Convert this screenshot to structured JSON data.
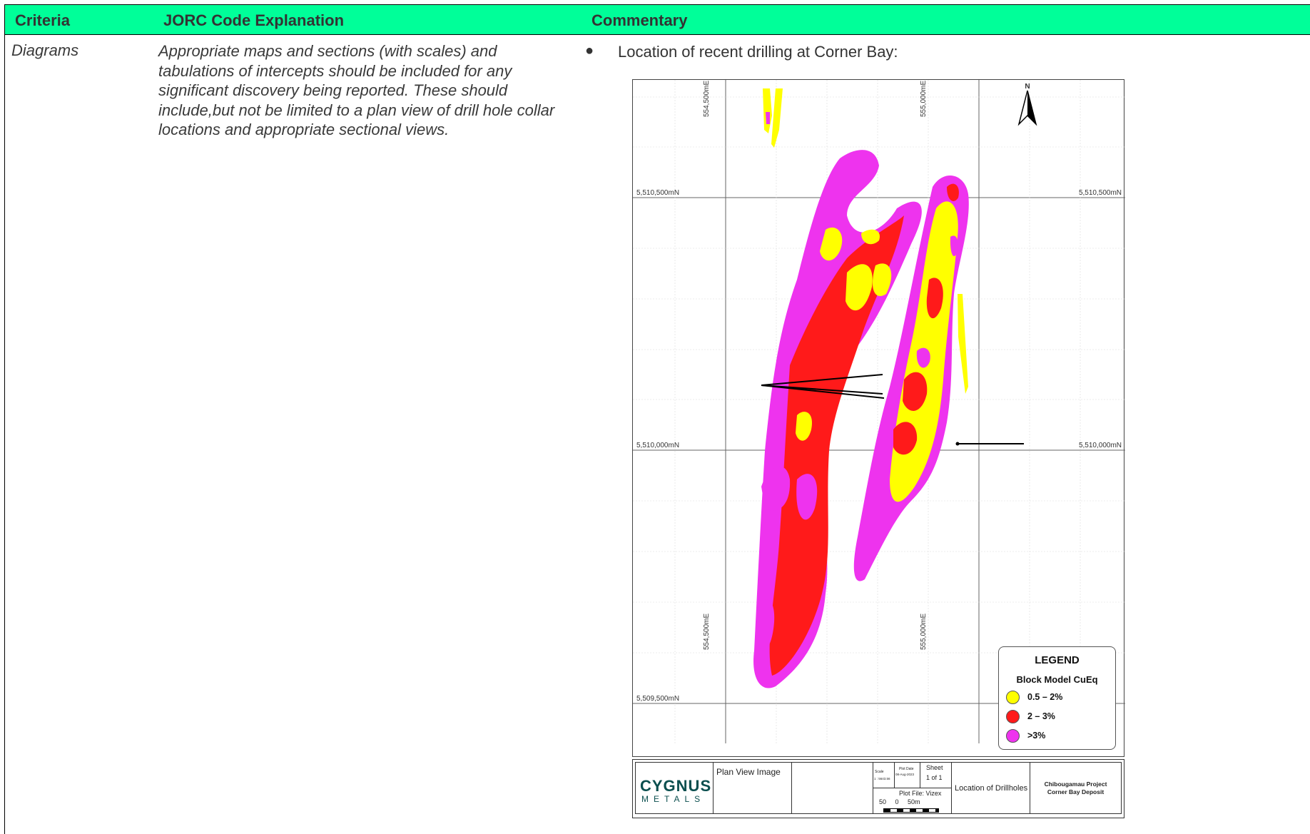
{
  "header": {
    "col1": "Criteria",
    "col2": "JORC Code Explanation",
    "col3": "Commentary"
  },
  "row": {
    "criteria": "Diagrams",
    "explanation": "Appropriate maps and sections (with scales) and tabulations of intercepts should be included for any significant discovery being reported. These should include,but not be limited to a plan view of drill hole collar locations and appropriate sectional views.",
    "commentary_bullet": "Location of recent drilling at Corner Bay:"
  },
  "map": {
    "easting_labels": [
      "554,500mE",
      "555,000mE"
    ],
    "northing_labels": [
      "5,510,500mN",
      "5,510,000mN",
      "5,509,500mN"
    ],
    "north_label": "N",
    "legend": {
      "title": "LEGEND",
      "subtitle": "Block Model CuEq",
      "items": [
        {
          "label": "0.5 – 2%",
          "color": "#ffff00"
        },
        {
          "label": "2 – 3%",
          "color": "#ff0000"
        },
        {
          "label": ">3%",
          "color": "#ee44ee"
        }
      ]
    },
    "title_block": {
      "logo_top": "CYGNUS",
      "logo_bottom": "METALS",
      "plan_view": "Plan View Image",
      "scale_label": "Scale",
      "scale_value": "1 : 5643.56",
      "plot_date_label": "Plot Date",
      "plot_date_value": "08-Aug-2023",
      "sheet_label": "Sheet",
      "sheet_value": "1 of 1",
      "plot_file": "Plot File: Vizex",
      "scale_bar": "50     0     50m",
      "location": "Location of Drillholes",
      "project": "Chibougamau Project",
      "deposit": "Corner Bay Deposit"
    },
    "colors": {
      "yellow": "#ffff00",
      "red": "#ff1a1a",
      "magenta": "#ee33ee",
      "header_green": "#00ff99"
    }
  }
}
